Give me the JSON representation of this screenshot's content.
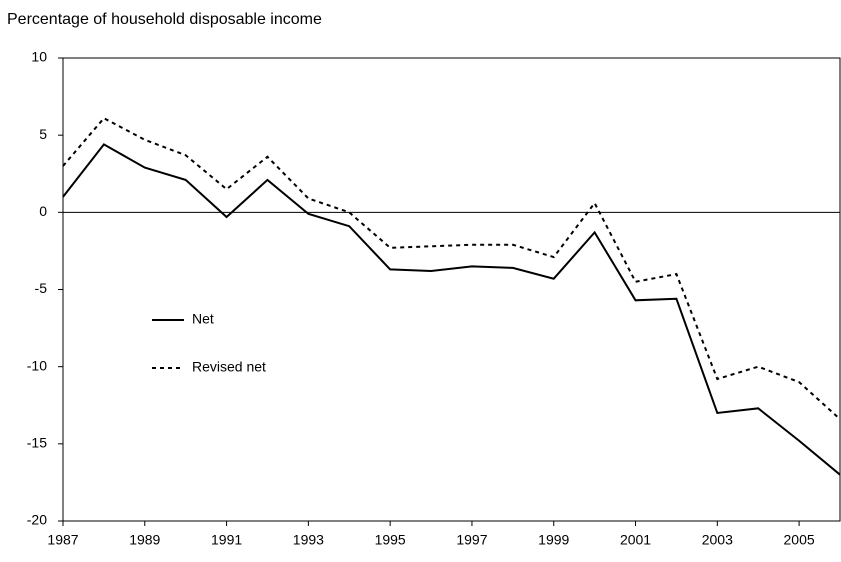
{
  "chart_data": {
    "type": "line",
    "title": "Percentage of household disposable income",
    "x": [
      1987,
      1988,
      1989,
      1990,
      1991,
      1992,
      1993,
      1994,
      1995,
      1996,
      1997,
      1998,
      1999,
      2000,
      2001,
      2002,
      2003,
      2004,
      2005,
      2006
    ],
    "series": [
      {
        "name": "Net",
        "color": "#000000",
        "dash": "solid",
        "values": [
          1.0,
          4.4,
          2.9,
          2.1,
          -0.3,
          2.1,
          -0.1,
          -0.9,
          -3.7,
          -3.8,
          -3.5,
          -3.6,
          -4.3,
          -1.3,
          -5.7,
          -5.6,
          -13.0,
          -12.7,
          -14.8,
          -17.0
        ]
      },
      {
        "name": "Revised net",
        "color": "#000000",
        "dash": "dotted",
        "values": [
          3.0,
          6.1,
          4.7,
          3.7,
          1.5,
          3.6,
          0.9,
          0.0,
          -2.3,
          -2.2,
          -2.1,
          -2.1,
          -2.9,
          0.6,
          -4.5,
          -4.0,
          -10.8,
          -10.0,
          -11.0,
          -13.4
        ]
      }
    ],
    "xlim": [
      1987,
      2006
    ],
    "xticks": [
      1987,
      1989,
      1991,
      1993,
      1995,
      1997,
      1999,
      2001,
      2003,
      2005
    ],
    "ylim": [
      -20,
      10
    ],
    "yticks": [
      -20,
      -15,
      -10,
      -5,
      0,
      5,
      10
    ],
    "zero_line": true,
    "legend": "inside-left"
  }
}
